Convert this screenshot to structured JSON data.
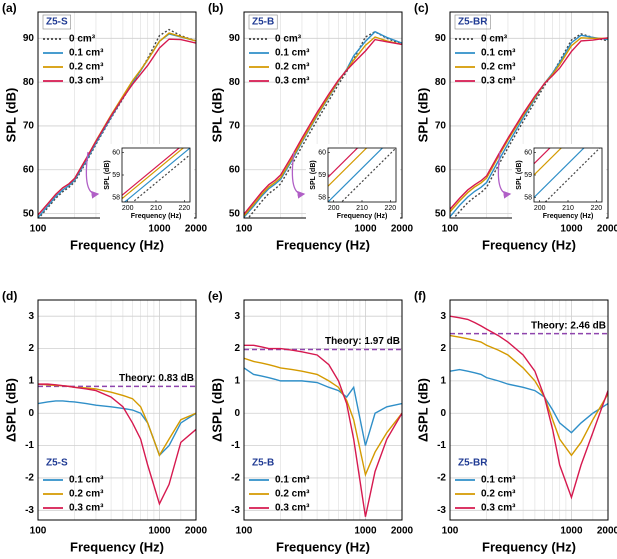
{
  "chart_data": [
    {
      "type": "line",
      "panel": "(a)",
      "title": "Z5-S",
      "xlabel": "Frequency (Hz)",
      "ylabel": "SPL (dB)",
      "xscale": "log",
      "xlim": [
        100,
        2000
      ],
      "xticks": [
        100,
        1000,
        2000
      ],
      "x_minor_ticks": [
        200,
        300,
        400,
        500,
        600,
        700,
        800,
        900,
        1500
      ],
      "ylim": [
        49,
        96
      ],
      "yticks": [
        50,
        60,
        70,
        80,
        90
      ],
      "grid": true,
      "legend": "upper left",
      "x": [
        100,
        120,
        140,
        160,
        180,
        200,
        250,
        300,
        400,
        500,
        600,
        700,
        800,
        1000,
        1200,
        1500,
        2000
      ],
      "series": [
        {
          "name": "0 cm³",
          "color": "#444444",
          "linestyle": "dotted",
          "values": [
            48.8,
            51.3,
            53.5,
            55.0,
            56.0,
            57.2,
            61.8,
            65.8,
            71.8,
            76.2,
            79.8,
            82.6,
            85.4,
            90.6,
            92.0,
            90.6,
            89.4
          ]
        },
        {
          "name": "0.1 cm³",
          "color": "#2f8fc8",
          "linestyle": "solid",
          "values": [
            49.1,
            51.7,
            53.9,
            55.4,
            56.4,
            57.6,
            62.1,
            66.1,
            72.0,
            76.4,
            79.9,
            82.6,
            85.1,
            89.3,
            91.0,
            90.3,
            89.4
          ]
        },
        {
          "name": "0.2 cm³",
          "color": "#d49a00",
          "linestyle": "solid",
          "values": [
            49.7,
            52.2,
            54.4,
            55.9,
            56.8,
            58.0,
            62.6,
            66.6,
            72.5,
            76.8,
            80.3,
            82.8,
            85.1,
            89.3,
            91.2,
            90.4,
            89.4
          ]
        },
        {
          "name": "0.3 cm³",
          "color": "#d6194f",
          "linestyle": "solid",
          "values": [
            49.7,
            52.2,
            54.4,
            55.9,
            56.8,
            58.0,
            62.6,
            66.5,
            72.3,
            76.4,
            79.5,
            81.8,
            83.8,
            87.8,
            89.8,
            89.7,
            88.9
          ]
        }
      ],
      "inset": {
        "type": "line",
        "xlabel": "Frequency (Hz)",
        "ylabel": "SPL (dB)",
        "xlim": [
          198,
          222
        ],
        "xticks": [
          200,
          210,
          220
        ],
        "ylim": [
          57.8,
          60.2
        ],
        "yticks": [
          58,
          59,
          60
        ],
        "x": [
          198,
          222
        ],
        "series": [
          {
            "color": "#444444",
            "linestyle": "dotted",
            "values": [
              57.4,
              59.9
            ]
          },
          {
            "color": "#2f8fc8",
            "linestyle": "solid",
            "values": [
              57.7,
              60.2
            ]
          },
          {
            "color": "#d49a00",
            "linestyle": "solid",
            "values": [
              57.95,
              60.45
            ]
          },
          {
            "color": "#d6194f",
            "linestyle": "solid",
            "values": [
              58.1,
              60.6
            ]
          }
        ]
      }
    },
    {
      "type": "line",
      "panel": "(b)",
      "title": "Z5-B",
      "xlabel": "Frequency (Hz)",
      "ylabel": "SPL (dB)",
      "xscale": "log",
      "xlim": [
        100,
        2000
      ],
      "xticks": [
        100,
        1000,
        2000
      ],
      "x_minor_ticks": [
        200,
        300,
        400,
        500,
        600,
        700,
        800,
        900,
        1500
      ],
      "ylim": [
        49,
        96
      ],
      "yticks": [
        50,
        60,
        70,
        80,
        90
      ],
      "grid": true,
      "legend": "upper left",
      "x": [
        100,
        120,
        140,
        160,
        180,
        200,
        250,
        300,
        400,
        500,
        600,
        700,
        800,
        1000,
        1200,
        1500,
        2000
      ],
      "series": [
        {
          "name": "0 cm³",
          "color": "#444444",
          "linestyle": "dotted",
          "values": [
            47.8,
            50.5,
            52.8,
            54.6,
            55.6,
            56.8,
            61.3,
            65.3,
            71.3,
            75.8,
            79.5,
            82.4,
            85.2,
            90.3,
            91.5,
            90.0,
            88.6
          ]
        },
        {
          "name": "0.1 cm³",
          "color": "#2f8fc8",
          "linestyle": "solid",
          "values": [
            49.2,
            51.7,
            54.0,
            55.7,
            56.7,
            57.8,
            62.3,
            66.3,
            72.3,
            76.6,
            80.2,
            82.9,
            86.0,
            89.3,
            91.5,
            90.2,
            88.9
          ]
        },
        {
          "name": "0.2 cm³",
          "color": "#d49a00",
          "linestyle": "solid",
          "values": [
            49.5,
            52.1,
            54.4,
            56.1,
            57.1,
            58.2,
            62.7,
            66.6,
            72.5,
            76.8,
            80.3,
            82.8,
            85.0,
            88.4,
            90.3,
            89.4,
            88.6
          ]
        },
        {
          "name": "0.3 cm³",
          "color": "#d6194f",
          "linestyle": "solid",
          "values": [
            49.9,
            52.6,
            54.9,
            56.6,
            57.6,
            58.8,
            63.3,
            67.2,
            73.1,
            77.3,
            80.5,
            82.7,
            84.4,
            87.1,
            89.7,
            89.2,
            88.6
          ]
        }
      ],
      "inset": {
        "type": "line",
        "xlabel": "Frequency (Hz)",
        "ylabel": "SPL (dB)",
        "xlim": [
          198,
          222
        ],
        "xticks": [
          200,
          210,
          220
        ],
        "ylim": [
          57.8,
          60.2
        ],
        "yticks": [
          58,
          59,
          60
        ],
        "x": [
          198,
          222
        ],
        "series": [
          {
            "color": "#444444",
            "linestyle": "dotted",
            "values": [
              57.2,
              60.2
            ]
          },
          {
            "color": "#2f8fc8",
            "linestyle": "solid",
            "values": [
              57.8,
              60.8
            ]
          },
          {
            "color": "#d49a00",
            "linestyle": "solid",
            "values": [
              58.5,
              61.5
            ]
          },
          {
            "color": "#d6194f",
            "linestyle": "solid",
            "values": [
              58.9,
              61.9
            ]
          }
        ]
      }
    },
    {
      "type": "line",
      "panel": "(c)",
      "title": "Z5-BR",
      "xlabel": "Frequency (Hz)",
      "ylabel": "SPL (dB)",
      "xscale": "log",
      "xlim": [
        100,
        2000
      ],
      "xticks": [
        100,
        1000,
        2000
      ],
      "x_minor_ticks": [
        200,
        300,
        400,
        500,
        600,
        700,
        800,
        900,
        1500
      ],
      "ylim": [
        49,
        96
      ],
      "yticks": [
        50,
        60,
        70,
        80,
        90
      ],
      "grid": true,
      "legend": "upper left",
      "x": [
        100,
        120,
        140,
        160,
        180,
        200,
        250,
        300,
        400,
        500,
        600,
        700,
        800,
        1000,
        1200,
        1500,
        2000
      ],
      "series": [
        {
          "name": "0 cm³",
          "color": "#444444",
          "linestyle": "dotted",
          "values": [
            48.0,
            50.5,
            52.5,
            53.8,
            54.8,
            56.0,
            61.0,
            65.0,
            71.0,
            75.5,
            79.2,
            82.0,
            84.8,
            89.6,
            91.0,
            90.2,
            89.4
          ]
        },
        {
          "name": "0.1 cm³",
          "color": "#2f8fc8",
          "linestyle": "solid",
          "values": [
            49.3,
            51.9,
            53.8,
            55.1,
            56.0,
            57.1,
            62.0,
            65.9,
            71.8,
            76.2,
            79.7,
            82.1,
            84.5,
            89.0,
            90.7,
            90.2,
            89.7
          ]
        },
        {
          "name": "0.2 cm³",
          "color": "#d49a00",
          "linestyle": "solid",
          "values": [
            50.4,
            52.9,
            54.8,
            56.1,
            57.0,
            58.1,
            63.0,
            66.8,
            72.4,
            76.5,
            79.7,
            81.8,
            84.0,
            88.3,
            90.1,
            90.0,
            90.0
          ]
        },
        {
          "name": "0.3 cm³",
          "color": "#d6194f",
          "linestyle": "solid",
          "values": [
            51.0,
            53.5,
            55.4,
            56.6,
            57.5,
            58.6,
            63.4,
            67.2,
            72.8,
            76.8,
            79.7,
            81.5,
            83.2,
            87.0,
            89.4,
            89.6,
            90.1
          ]
        }
      ],
      "inset": {
        "type": "line",
        "xlabel": "Frequency (Hz)",
        "ylabel": "SPL (dB)",
        "xlim": [
          198,
          222
        ],
        "xticks": [
          200,
          210,
          220
        ],
        "ylim": [
          57.8,
          60.2
        ],
        "yticks": [
          58,
          59,
          60
        ],
        "x": [
          198,
          222
        ],
        "series": [
          {
            "color": "#444444",
            "linestyle": "dotted",
            "values": [
              57.3,
              60.3
            ]
          },
          {
            "color": "#2f8fc8",
            "linestyle": "solid",
            "values": [
              58.0,
              61.0
            ]
          },
          {
            "color": "#d49a00",
            "linestyle": "solid",
            "values": [
              59.0,
              62.0
            ]
          },
          {
            "color": "#d6194f",
            "linestyle": "solid",
            "values": [
              59.5,
              62.5
            ]
          }
        ]
      }
    },
    {
      "type": "line",
      "panel": "(d)",
      "title": "Z5-S",
      "xlabel": "Frequency (Hz)",
      "ylabel": "ΔSPL (dB)",
      "xscale": "log",
      "xlim": [
        100,
        2000
      ],
      "xticks": [
        100,
        1000,
        2000
      ],
      "x_minor_ticks": [
        200,
        300,
        400,
        500,
        600,
        700,
        800,
        900,
        1500
      ],
      "ylim": [
        -3.3,
        3.5
      ],
      "yticks": [
        -3,
        -2,
        -1,
        0,
        1,
        2,
        3
      ],
      "grid": true,
      "legend": "lower left",
      "theory": {
        "label": "Theory: 0.83 dB",
        "value": 0.83,
        "color": "#8e44ad"
      },
      "x": [
        100,
        120,
        140,
        160,
        180,
        200,
        250,
        300,
        400,
        500,
        600,
        700,
        800,
        1000,
        1200,
        1500,
        2000
      ],
      "series": [
        {
          "name": "0.1 cm³",
          "color": "#2f8fc8",
          "values": [
            0.3,
            0.35,
            0.38,
            0.38,
            0.36,
            0.35,
            0.3,
            0.25,
            0.2,
            0.15,
            0.1,
            0,
            -0.3,
            -1.3,
            -1.0,
            -0.3,
            0
          ]
        },
        {
          "name": "0.2 cm³",
          "color": "#d49a00",
          "values": [
            0.9,
            0.88,
            0.86,
            0.85,
            0.83,
            0.8,
            0.78,
            0.75,
            0.65,
            0.55,
            0.45,
            0.2,
            -0.3,
            -1.3,
            -0.8,
            -0.2,
            0
          ]
        },
        {
          "name": "0.3 cm³",
          "color": "#d6194f",
          "values": [
            0.9,
            0.9,
            0.88,
            0.85,
            0.83,
            0.8,
            0.75,
            0.7,
            0.5,
            0.2,
            -0.3,
            -0.8,
            -1.6,
            -2.8,
            -2.2,
            -0.9,
            -0.5
          ]
        }
      ]
    },
    {
      "type": "line",
      "panel": "(e)",
      "title": "Z5-B",
      "xlabel": "Frequency (Hz)",
      "ylabel": "ΔSPL (dB)",
      "xscale": "log",
      "xlim": [
        100,
        2000
      ],
      "xticks": [
        100,
        1000,
        2000
      ],
      "x_minor_ticks": [
        200,
        300,
        400,
        500,
        600,
        700,
        800,
        900,
        1500
      ],
      "ylim": [
        -3.3,
        3.5
      ],
      "yticks": [
        -3,
        -2,
        -1,
        0,
        1,
        2,
        3
      ],
      "grid": true,
      "legend": "lower left",
      "theory": {
        "label": "Theory: 1.97 dB",
        "value": 1.97,
        "color": "#8e44ad"
      },
      "x": [
        100,
        120,
        140,
        160,
        180,
        200,
        250,
        300,
        400,
        500,
        600,
        700,
        800,
        1000,
        1200,
        1500,
        2000
      ],
      "series": [
        {
          "name": "0.1 cm³",
          "color": "#2f8fc8",
          "values": [
            1.4,
            1.2,
            1.15,
            1.1,
            1.05,
            1.0,
            1.0,
            1.0,
            0.95,
            0.8,
            0.7,
            0.5,
            0.8,
            -1.0,
            0,
            0.2,
            0.3
          ]
        },
        {
          "name": "0.2 cm³",
          "color": "#d49a00",
          "values": [
            1.7,
            1.6,
            1.55,
            1.5,
            1.45,
            1.4,
            1.35,
            1.3,
            1.2,
            1.0,
            0.8,
            0.4,
            -0.2,
            -1.9,
            -1.2,
            -0.6,
            0
          ]
        },
        {
          "name": "0.3 cm³",
          "color": "#d6194f",
          "values": [
            2.1,
            2.1,
            2.05,
            2.0,
            2.0,
            2.0,
            1.95,
            1.9,
            1.8,
            1.5,
            1.0,
            0.3,
            -0.8,
            -3.2,
            -1.8,
            -0.8,
            0
          ]
        }
      ]
    },
    {
      "type": "line",
      "panel": "(f)",
      "title": "Z5-BR",
      "xlabel": "Frequency (Hz)",
      "ylabel": "ΔSPL (dB)",
      "xscale": "log",
      "xlim": [
        100,
        2000
      ],
      "xticks": [
        100,
        1000,
        2000
      ],
      "x_minor_ticks": [
        200,
        300,
        400,
        500,
        600,
        700,
        800,
        900,
        1500
      ],
      "ylim": [
        -3.3,
        3.5
      ],
      "yticks": [
        -3,
        -2,
        -1,
        0,
        1,
        2,
        3
      ],
      "grid": true,
      "legend": "lower left",
      "theory": {
        "label": "Theory: 2.46 dB",
        "value": 2.46,
        "color": "#8e44ad"
      },
      "x": [
        100,
        120,
        140,
        160,
        180,
        200,
        250,
        300,
        400,
        500,
        600,
        700,
        800,
        1000,
        1200,
        1500,
        2000
      ],
      "series": [
        {
          "name": "0.1 cm³",
          "color": "#2f8fc8",
          "values": [
            1.3,
            1.35,
            1.3,
            1.25,
            1.2,
            1.1,
            1.0,
            0.9,
            0.8,
            0.7,
            0.5,
            0.1,
            -0.3,
            -0.6,
            -0.3,
            0,
            0.3
          ]
        },
        {
          "name": "0.2 cm³",
          "color": "#d49a00",
          "values": [
            2.4,
            2.35,
            2.3,
            2.25,
            2.2,
            2.1,
            1.95,
            1.8,
            1.4,
            1.0,
            0.5,
            -0.2,
            -0.8,
            -1.3,
            -0.9,
            -0.2,
            0.6
          ]
        },
        {
          "name": "0.3 cm³",
          "color": "#d6194f",
          "values": [
            3.0,
            2.95,
            2.9,
            2.8,
            2.7,
            2.6,
            2.4,
            2.2,
            1.8,
            1.3,
            0.5,
            -0.5,
            -1.6,
            -2.6,
            -1.6,
            -0.6,
            0.7
          ]
        }
      ]
    }
  ]
}
